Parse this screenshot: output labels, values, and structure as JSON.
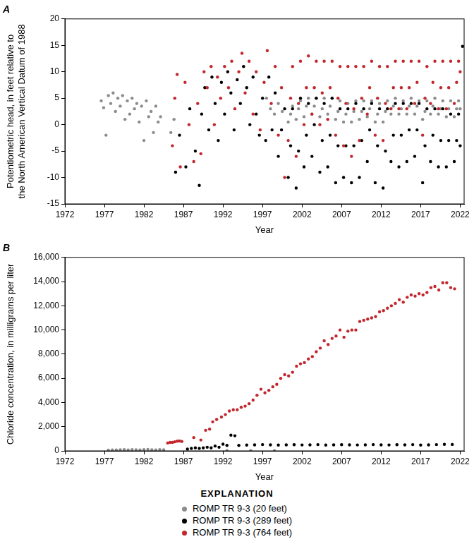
{
  "chart_data": [
    {
      "type": "scatter",
      "title": "A",
      "x_label": "Year",
      "y_label": "Potentiometric head, in feet relative to the North American Vertical Datum of 1988",
      "xlim": [
        1972,
        2022.5
      ],
      "xticks": [
        1972,
        1977,
        1982,
        1987,
        1992,
        1997,
        2002,
        2007,
        2012,
        2017,
        2022
      ],
      "ylim": [
        -15,
        20
      ],
      "yticks": [
        -15,
        -10,
        -5,
        0,
        5,
        10,
        15,
        20
      ],
      "grid": false,
      "marker": "circle",
      "series": [
        {
          "name": "ROMP TR 9-3 (20 feet)",
          "color": "#8c8c8c",
          "x": [
            1976.6,
            1976.9,
            1977.2,
            1977.5,
            1977.8,
            1978.1,
            1978.4,
            1978.7,
            1979.0,
            1979.3,
            1979.6,
            1979.9,
            1980.2,
            1980.5,
            1980.8,
            1981.1,
            1981.4,
            1981.7,
            1982.0,
            1982.3,
            1982.6,
            1982.9,
            1983.2,
            1983.5,
            1983.8,
            1984.1,
            1985.4,
            1985.8,
            1997.5,
            1998.0,
            1998.5,
            1999.0,
            1999.5,
            2000.25,
            2000.55,
            2000.8,
            2001.25,
            2001.55,
            2001.8,
            2002.25,
            2002.55,
            2002.8,
            2003.25,
            2003.55,
            2003.8,
            2004.25,
            2004.55,
            2004.8,
            2005.25,
            2005.55,
            2005.8,
            2006.25,
            2006.55,
            2006.8,
            2007.25,
            2007.55,
            2007.8,
            2008.25,
            2008.55,
            2008.8,
            2009.25,
            2009.55,
            2009.8,
            2010.25,
            2010.55,
            2010.8,
            2011.25,
            2011.55,
            2011.8,
            2012.25,
            2012.55,
            2012.8,
            2013.25,
            2013.55,
            2013.8,
            2014.25,
            2014.55,
            2014.8,
            2015.25,
            2015.55,
            2015.8,
            2016.25,
            2016.55,
            2016.8,
            2017.25,
            2017.55,
            2017.8,
            2018.25,
            2018.55,
            2018.8,
            2019.25,
            2019.55,
            2019.8,
            2020.25,
            2020.55,
            2020.8,
            2021.25,
            2021.55,
            2021.8,
            2022.0
          ],
          "values": [
            4.5,
            3.2,
            -2.0,
            5.5,
            4.0,
            6.0,
            2.5,
            5.0,
            3.5,
            5.5,
            1.0,
            4.5,
            2.0,
            5.0,
            3.0,
            4.0,
            0.5,
            3.5,
            -3.0,
            4.5,
            1.5,
            2.5,
            -1.5,
            3.5,
            0.5,
            1.5,
            -1.5,
            1.0,
            5.0,
            3.0,
            2.0,
            4.0,
            2.5,
            0.5,
            2.0,
            3.5,
            1.0,
            3.0,
            4.5,
            1.5,
            3.5,
            5.0,
            2.0,
            3.5,
            5.0,
            1.5,
            3.0,
            5.0,
            2.0,
            3.5,
            5.0,
            1.0,
            2.5,
            4.5,
            0.5,
            2.0,
            4.0,
            0.5,
            2.5,
            4.5,
            1.0,
            2.5,
            4.5,
            1.5,
            3.0,
            4.5,
            0.5,
            2.0,
            4.0,
            0.5,
            2.5,
            4.5,
            2.0,
            3.5,
            5.0,
            2.0,
            3.0,
            4.5,
            2.0,
            3.5,
            5.0,
            2.0,
            3.5,
            4.5,
            1.0,
            2.5,
            4.5,
            2.0,
            3.5,
            5.0,
            2.0,
            3.0,
            4.5,
            1.5,
            3.0,
            4.5,
            1.5,
            3.0,
            4.5,
            3.0
          ]
        },
        {
          "name": "ROMP TR 9-3 (289 feet)",
          "color": "#000000",
          "x": [
            1986.0,
            1986.5,
            1987.3,
            1987.8,
            1988.5,
            1989.0,
            1989.3,
            1989.7,
            1990.2,
            1990.6,
            1991.0,
            1991.4,
            1991.8,
            1992.2,
            1992.6,
            1993.0,
            1993.4,
            1993.8,
            1994.2,
            1994.6,
            1995.0,
            1995.4,
            1995.8,
            1996.2,
            1996.6,
            1997.0,
            1997.4,
            1997.8,
            1998.2,
            1998.6,
            1999.0,
            1999.4,
            1999.8,
            2000.25,
            2000.55,
            2000.8,
            2001.25,
            2001.55,
            2001.8,
            2002.25,
            2002.55,
            2002.8,
            2003.25,
            2003.55,
            2003.8,
            2004.25,
            2004.55,
            2004.8,
            2005.25,
            2005.55,
            2005.8,
            2006.25,
            2006.55,
            2006.8,
            2007.25,
            2007.55,
            2007.8,
            2008.25,
            2008.55,
            2008.8,
            2009.25,
            2009.55,
            2009.8,
            2010.25,
            2010.55,
            2010.8,
            2011.25,
            2011.55,
            2011.8,
            2012.25,
            2012.55,
            2012.8,
            2013.25,
            2013.55,
            2013.8,
            2014.25,
            2014.55,
            2014.8,
            2015.25,
            2015.55,
            2015.8,
            2016.25,
            2016.55,
            2016.8,
            2017.25,
            2017.55,
            2017.8,
            2018.25,
            2018.55,
            2018.8,
            2019.25,
            2019.55,
            2019.8,
            2020.25,
            2020.55,
            2020.8,
            2021.25,
            2021.55,
            2021.8,
            2022.0,
            2022.3
          ],
          "values": [
            -9.0,
            -2.0,
            -8.0,
            3.0,
            -5.0,
            -11.5,
            2.0,
            7.0,
            -1.0,
            9.0,
            4.0,
            -3.0,
            8.0,
            2.0,
            10.0,
            6.0,
            -1.0,
            8.5,
            4.0,
            11.0,
            7.0,
            0.0,
            9.0,
            2.0,
            -2.0,
            5.0,
            -3.0,
            9.0,
            -1.0,
            6.0,
            -6.0,
            -1.0,
            3.0,
            -10,
            -4,
            3,
            -12,
            -5,
            5,
            -8,
            -2,
            4,
            -6,
            0,
            5,
            -9,
            -3,
            4,
            -8,
            -2,
            5,
            -11,
            -4,
            3,
            -10,
            -4,
            3,
            -11,
            -4,
            4,
            -10,
            -3,
            3,
            -7,
            -1,
            4,
            -11,
            -4,
            3,
            -12,
            -5,
            3,
            -7,
            -2,
            4,
            -8,
            -2,
            4,
            -7,
            -1,
            4,
            -6,
            -1,
            4,
            -11,
            -4,
            3,
            -7,
            -2,
            3,
            -8,
            -3,
            3,
            -8,
            -3,
            2,
            -7,
            -3,
            2,
            -4,
            14.8
          ]
        },
        {
          "name": "ROMP TR 9-3 (764 feet)",
          "color": "#c1272d",
          "x": [
            1985.6,
            1985.9,
            1986.2,
            1986.6,
            1987.2,
            1987.7,
            1988.3,
            1988.8,
            1989.2,
            1989.6,
            1990.0,
            1990.5,
            1990.9,
            1991.3,
            1991.7,
            1992.2,
            1992.7,
            1993.1,
            1993.5,
            1994.0,
            1994.4,
            1994.8,
            1995.3,
            1995.8,
            1996.2,
            1996.7,
            1997.2,
            1997.6,
            1998.1,
            1998.6,
            1999.0,
            1999.4,
            1999.8,
            2000.25,
            2000.55,
            2000.8,
            2001.25,
            2001.55,
            2001.8,
            2002.25,
            2002.55,
            2002.8,
            2003.25,
            2003.55,
            2003.8,
            2004.25,
            2004.55,
            2004.8,
            2005.25,
            2005.55,
            2005.8,
            2006.25,
            2006.55,
            2006.8,
            2007.25,
            2007.55,
            2007.8,
            2008.25,
            2008.55,
            2008.8,
            2009.25,
            2009.55,
            2009.8,
            2010.25,
            2010.55,
            2010.8,
            2011.25,
            2011.55,
            2011.8,
            2012.25,
            2012.55,
            2012.8,
            2013.25,
            2013.55,
            2013.8,
            2014.25,
            2014.55,
            2014.8,
            2015.25,
            2015.55,
            2015.8,
            2016.25,
            2016.55,
            2016.8,
            2017.25,
            2017.55,
            2017.8,
            2018.25,
            2018.55,
            2018.8,
            2019.25,
            2019.55,
            2019.8,
            2020.25,
            2020.55,
            2020.8,
            2021.25,
            2021.55,
            2021.8,
            2022.0
          ],
          "values": [
            -4.0,
            5.0,
            9.5,
            -8.0,
            8.0,
            0.0,
            -7.0,
            4.0,
            -5.5,
            10.0,
            7.0,
            11.0,
            0.0,
            9.0,
            5.0,
            11.0,
            7.0,
            12.0,
            3.0,
            10.0,
            13.5,
            6.0,
            12.0,
            2.0,
            10.0,
            -1.0,
            8.0,
            14.0,
            4.0,
            11.0,
            -2.0,
            7.0,
            -10.0,
            -3,
            5,
            11,
            -6,
            4,
            12,
            0,
            7,
            13,
            2,
            7,
            12,
            0,
            6,
            12,
            1,
            7,
            12,
            -2,
            5,
            11,
            -4,
            4,
            11,
            -6,
            3,
            11,
            -3,
            5,
            11,
            2,
            7,
            12,
            -2,
            5,
            11,
            -3,
            4,
            11,
            3,
            7,
            12,
            3,
            7,
            12,
            3,
            7,
            12,
            4,
            8,
            12,
            -2,
            5,
            11,
            4,
            8,
            12,
            3,
            7,
            12,
            3,
            7,
            12,
            4,
            8,
            12,
            10
          ]
        }
      ]
    },
    {
      "type": "scatter",
      "title": "B",
      "x_label": "Year",
      "y_label": "Chloride concentration, in milligrams per liter",
      "xlim": [
        1972,
        2022.5
      ],
      "xticks": [
        1972,
        1977,
        1982,
        1987,
        1992,
        1997,
        2002,
        2007,
        2012,
        2017,
        2022
      ],
      "ylim": [
        0,
        16000
      ],
      "yticks": [
        0,
        {
          "value": 2000,
          "label": "2,000"
        },
        {
          "value": 4000,
          "label": "4,000"
        },
        {
          "value": 6000,
          "label": "6,000"
        },
        {
          "value": 8000,
          "label": "8,000"
        },
        {
          "value": 10000,
          "label": "10,000"
        },
        {
          "value": 12000,
          "label": "12,000"
        },
        {
          "value": 14000,
          "label": "14,000"
        },
        {
          "value": 16000,
          "label": "16,000"
        }
      ],
      "grid": false,
      "marker": "circle",
      "legend": "bottom",
      "legend_title": "EXPLANATION",
      "series": [
        {
          "name": "ROMP TR 9-3 (20 feet)",
          "color": "#8c8c8c",
          "x": [
            1977.5,
            1978.0,
            1978.5,
            1979.0,
            1979.5,
            1980.0,
            1980.5,
            1981.0,
            1981.5,
            1982.0,
            1982.5,
            1983.0,
            1983.5,
            1984.0,
            1984.5,
            1992.5,
            1995.5,
            1998.5
          ],
          "values": [
            60,
            80,
            70,
            90,
            100,
            80,
            110,
            90,
            70,
            100,
            120,
            90,
            80,
            100,
            90,
            20,
            20,
            20
          ]
        },
        {
          "name": "ROMP TR 9-3 (289 feet)",
          "color": "#000000",
          "x": [
            1987.5,
            1988.0,
            1988.5,
            1989.0,
            1989.5,
            1990.0,
            1990.5,
            1991.0,
            1991.5,
            1992.0,
            1992.5,
            1993.0,
            1993.5,
            1994.0,
            1995.0,
            1996.0,
            1997.0,
            1998.0,
            1999.0,
            2000.0,
            2001.0,
            2002.0,
            2003.0,
            2004.0,
            2005.0,
            2006.0,
            2007.0,
            2008.0,
            2009.0,
            2010.0,
            2011.0,
            2012.0,
            2013.0,
            2014.0,
            2015.0,
            2016.0,
            2017.0,
            2018.0,
            2019.0,
            2020.0,
            2021.0
          ],
          "values": [
            150,
            200,
            250,
            200,
            250,
            300,
            250,
            400,
            300,
            550,
            450,
            1300,
            1250,
            450,
            480,
            500,
            520,
            500,
            480,
            500,
            510,
            490,
            500,
            520,
            480,
            500,
            510,
            500,
            490,
            500,
            520,
            500,
            490,
            510,
            500,
            520,
            480,
            500,
            520,
            540,
            530
          ]
        },
        {
          "name": "ROMP TR 9-3 (764 feet)",
          "color": "#c1272d",
          "x": [
            1985.0,
            1985.3,
            1985.6,
            1985.9,
            1986.2,
            1986.5,
            1986.8,
            1988.3,
            1989.2,
            1989.8,
            1990.3,
            1990.7,
            1991.2,
            1991.8,
            1992.3,
            1992.8,
            1993.3,
            1993.8,
            1994.3,
            1994.8,
            1995.3,
            1995.8,
            1996.3,
            1996.8,
            1997.3,
            1997.8,
            1998.3,
            1998.8,
            1999.3,
            1999.8,
            2000.3,
            2000.8,
            2001.3,
            2001.8,
            2002.3,
            2002.8,
            2003.3,
            2003.8,
            2004.3,
            2004.8,
            2005.3,
            2005.8,
            2006.3,
            2006.8,
            2007.3,
            2007.8,
            2008.3,
            2008.8,
            2009.3,
            2009.8,
            2010.3,
            2010.8,
            2011.3,
            2011.8,
            2012.3,
            2012.8,
            2013.3,
            2013.8,
            2014.3,
            2014.8,
            2015.3,
            2015.8,
            2016.3,
            2016.8,
            2017.3,
            2017.8,
            2018.3,
            2018.8,
            2019.3,
            2019.8,
            2020.3,
            2020.8,
            2021.3
          ],
          "values": [
            650,
            700,
            700,
            750,
            800,
            820,
            780,
            1100,
            900,
            1700,
            1800,
            2400,
            2600,
            2800,
            3000,
            3300,
            3400,
            3400,
            3600,
            3700,
            3900,
            4200,
            4600,
            5100,
            4800,
            5000,
            5300,
            5500,
            6000,
            6300,
            6200,
            6500,
            7000,
            7200,
            7300,
            7600,
            7800,
            8200,
            8500,
            9100,
            8800,
            9300,
            9500,
            10000,
            9400,
            9900,
            10000,
            10000,
            10700,
            10800,
            10900,
            11000,
            11100,
            11500,
            11600,
            11800,
            12000,
            12200,
            12500,
            12300,
            12700,
            12900,
            12800,
            13000,
            12900,
            13100,
            13500,
            13600,
            13300,
            13900,
            13900,
            13500,
            13400
          ]
        }
      ]
    }
  ]
}
